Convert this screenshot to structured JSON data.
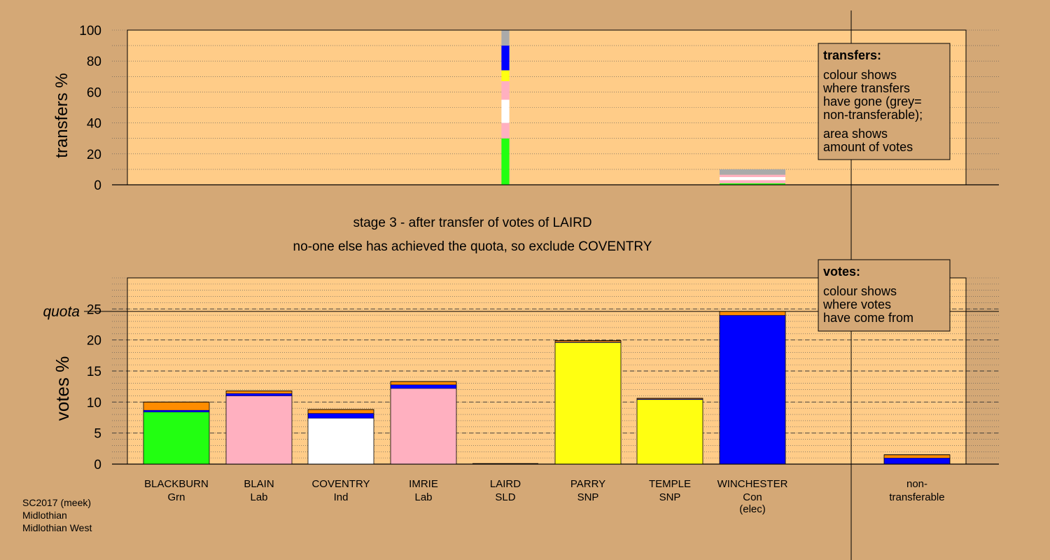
{
  "colors": {
    "background": "#d4a876",
    "plot_area": "#ffcc88",
    "legend_box": "#d4a876",
    "Grn": "#22ff11",
    "Lab": "#ffb0c0",
    "Ind": "#ffffff",
    "SNP": "#ffff11",
    "Con": "#0000ff",
    "SLD": "#ff8c00",
    "non_transferable": "#aaaaaa"
  },
  "footer": {
    "line1": "SC2017 (meek)",
    "line2": "Midlothian",
    "line3": "Midlothian West"
  },
  "stage_text": {
    "line1": "stage 3 - after transfer of votes of LAIRD",
    "line2": "no-one else has achieved the quota, so exclude COVENTRY"
  },
  "transfers_legend": {
    "title": "transfers:",
    "lines": [
      "colour shows",
      "where transfers",
      "have gone (grey=",
      "non-transferable);",
      "area shows",
      "amount of votes"
    ]
  },
  "votes_legend": {
    "title": "votes:",
    "lines": [
      "colour shows",
      "where votes",
      "have come from"
    ]
  },
  "candidates": [
    {
      "name": "BLACKBURN",
      "party": "Grn",
      "note": ""
    },
    {
      "name": "BLAIN",
      "party": "Lab",
      "note": ""
    },
    {
      "name": "COVENTRY",
      "party": "Ind",
      "note": ""
    },
    {
      "name": "IMRIE",
      "party": "Lab",
      "note": ""
    },
    {
      "name": "LAIRD",
      "party": "SLD",
      "note": ""
    },
    {
      "name": "PARRY",
      "party": "SNP",
      "note": ""
    },
    {
      "name": "TEMPLE",
      "party": "SNP",
      "note": ""
    },
    {
      "name": "WINCHESTER",
      "party": "Con",
      "note": "(elec)"
    },
    {
      "name": "non-",
      "party": "transferable",
      "note": ""
    }
  ],
  "chart_data": [
    {
      "type": "bar",
      "title": "",
      "ylabel": "transfers %",
      "ylim": [
        0,
        100
      ],
      "yticks": [
        0,
        20,
        40,
        60,
        80,
        100
      ],
      "bars": [
        {
          "slot": 4,
          "width_ratio": 0.12,
          "segments": [
            {
              "from": "Grn",
              "value": 30,
              "color": "#22ff11"
            },
            {
              "from": "Lab",
              "value": 10,
              "color": "#ffb0c0"
            },
            {
              "from": "Ind",
              "value": 15,
              "color": "#ffffff"
            },
            {
              "from": "Lab",
              "value": 12,
              "color": "#ffb0c0"
            },
            {
              "from": "SNP",
              "value": 7,
              "color": "#ffff11"
            },
            {
              "from": "Con",
              "value": 16,
              "color": "#0000ff"
            },
            {
              "from": "non-transferable",
              "value": 10,
              "color": "#aaaaaa"
            }
          ]
        },
        {
          "slot": 7,
          "width_ratio": 1.0,
          "segments": [
            {
              "from": "Grn",
              "value": 1,
              "color": "#22ff11"
            },
            {
              "from": "Lab",
              "value": 2,
              "color": "#ffb0c0"
            },
            {
              "from": "Ind",
              "value": 2,
              "color": "#ffffff"
            },
            {
              "from": "Lab",
              "value": 1.5,
              "color": "#ffb0c0"
            },
            {
              "from": "non-transferable",
              "value": 3.5,
              "color": "#aaaaaa"
            }
          ]
        }
      ]
    },
    {
      "type": "bar",
      "title": "",
      "ylabel": "votes %",
      "ylim": [
        0,
        30
      ],
      "yticks": [
        0,
        5,
        10,
        15,
        20,
        25
      ],
      "quota": 24.6,
      "quota_label": "quota",
      "bars": [
        {
          "slot": 0,
          "segments": [
            {
              "from": "Grn",
              "value": 8.4,
              "color": "#22ff11"
            },
            {
              "from": "Con",
              "value": 0.3,
              "color": "#0000ff"
            },
            {
              "from": "SLD",
              "value": 1.3,
              "color": "#ff8c00"
            }
          ]
        },
        {
          "slot": 1,
          "segments": [
            {
              "from": "Lab",
              "value": 11.0,
              "color": "#ffb0c0"
            },
            {
              "from": "Con",
              "value": 0.4,
              "color": "#0000ff"
            },
            {
              "from": "SLD",
              "value": 0.4,
              "color": "#ff8c00"
            }
          ]
        },
        {
          "slot": 2,
          "segments": [
            {
              "from": "Ind",
              "value": 7.4,
              "color": "#ffffff"
            },
            {
              "from": "Con",
              "value": 0.8,
              "color": "#0000ff"
            },
            {
              "from": "SLD",
              "value": 0.6,
              "color": "#ff8c00"
            }
          ]
        },
        {
          "slot": 3,
          "segments": [
            {
              "from": "Lab",
              "value": 12.2,
              "color": "#ffb0c0"
            },
            {
              "from": "Con",
              "value": 0.6,
              "color": "#0000ff"
            },
            {
              "from": "SLD",
              "value": 0.5,
              "color": "#ff8c00"
            }
          ]
        },
        {
          "slot": 4,
          "segments": []
        },
        {
          "slot": 5,
          "segments": [
            {
              "from": "SNP",
              "value": 19.6,
              "color": "#ffff11"
            },
            {
              "from": "Con",
              "value": 0.1,
              "color": "#0000ff"
            },
            {
              "from": "SLD",
              "value": 0.2,
              "color": "#ff8c00"
            }
          ]
        },
        {
          "slot": 6,
          "segments": [
            {
              "from": "SNP",
              "value": 10.4,
              "color": "#ffff11"
            },
            {
              "from": "Con",
              "value": 0.1,
              "color": "#0000ff"
            },
            {
              "from": "SLD",
              "value": 0.1,
              "color": "#ff8c00"
            }
          ]
        },
        {
          "slot": 7,
          "segments": [
            {
              "from": "Con",
              "value": 24.0,
              "color": "#0000ff"
            },
            {
              "from": "SLD",
              "value": 0.6,
              "color": "#ff8c00"
            }
          ]
        },
        {
          "slot": 8,
          "segments": [
            {
              "from": "Con",
              "value": 1.0,
              "color": "#0000ff"
            },
            {
              "from": "SLD",
              "value": 0.5,
              "color": "#ff8c00"
            }
          ]
        }
      ]
    }
  ]
}
